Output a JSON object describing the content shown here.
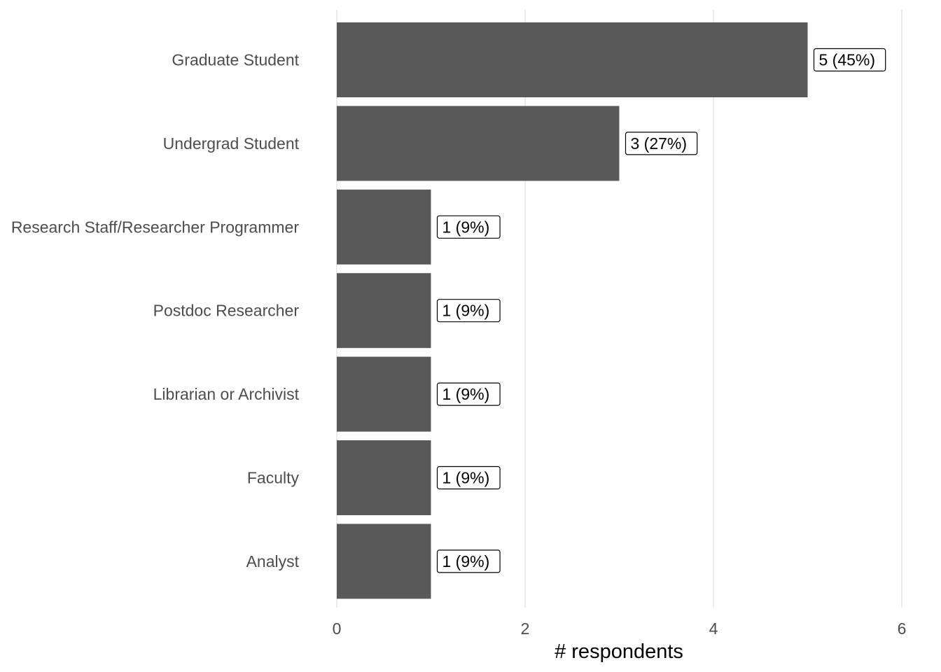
{
  "chart_data": {
    "type": "bar",
    "orientation": "horizontal",
    "categories": [
      "Graduate Student",
      "Undergrad Student",
      "Research Staff/Researcher Programmer",
      "Postdoc Researcher",
      "Librarian or Archivist",
      "Faculty",
      "Analyst"
    ],
    "values": [
      5,
      3,
      1,
      1,
      1,
      1,
      1
    ],
    "data_labels": [
      "5 (45%)",
      "3 (27%)",
      "1 (9%)",
      "1 (9%)",
      "1 (9%)",
      "1 (9%)",
      "1 (9%)"
    ],
    "xlabel": "# respondents",
    "ylabel": "",
    "xlim": [
      0,
      6
    ],
    "x_ticks": [
      0,
      2,
      4,
      6
    ],
    "x_tick_labels": [
      "0",
      "2",
      "4",
      "6"
    ],
    "grid": "vertical major",
    "legend": "none",
    "bar_color": "#595959"
  }
}
